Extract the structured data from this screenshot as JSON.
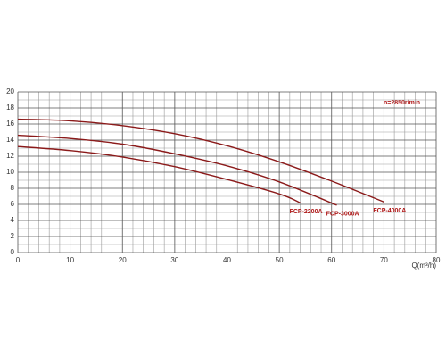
{
  "chart_data": {
    "type": "line",
    "annotation": "n=2850r/min",
    "x_label": "Q(m³/h)",
    "xlim": [
      0,
      80
    ],
    "xticks": [
      0,
      10,
      20,
      30,
      40,
      50,
      60,
      70,
      80
    ],
    "ylim": [
      0,
      20
    ],
    "yticks": [
      0,
      2,
      4,
      6,
      8,
      10,
      12,
      14,
      16,
      18,
      20
    ],
    "grid": true,
    "series": [
      {
        "name": "FCP-2200A",
        "color": "#8b1a1a",
        "x": [
          0,
          10,
          20,
          30,
          40,
          50,
          54
        ],
        "values": [
          13.2,
          12.7,
          11.9,
          10.7,
          9.1,
          7.3,
          6.2
        ]
      },
      {
        "name": "FCP-3000A",
        "color": "#8b1a1a",
        "x": [
          0,
          10,
          20,
          30,
          40,
          50,
          61
        ],
        "values": [
          14.6,
          14.2,
          13.5,
          12.3,
          10.8,
          8.8,
          5.9
        ]
      },
      {
        "name": "FCP-4000A",
        "color": "#8b1a1a",
        "x": [
          0,
          10,
          20,
          30,
          40,
          50,
          60,
          70
        ],
        "values": [
          16.6,
          16.4,
          15.8,
          14.8,
          13.3,
          11.3,
          8.9,
          6.3
        ]
      }
    ]
  }
}
